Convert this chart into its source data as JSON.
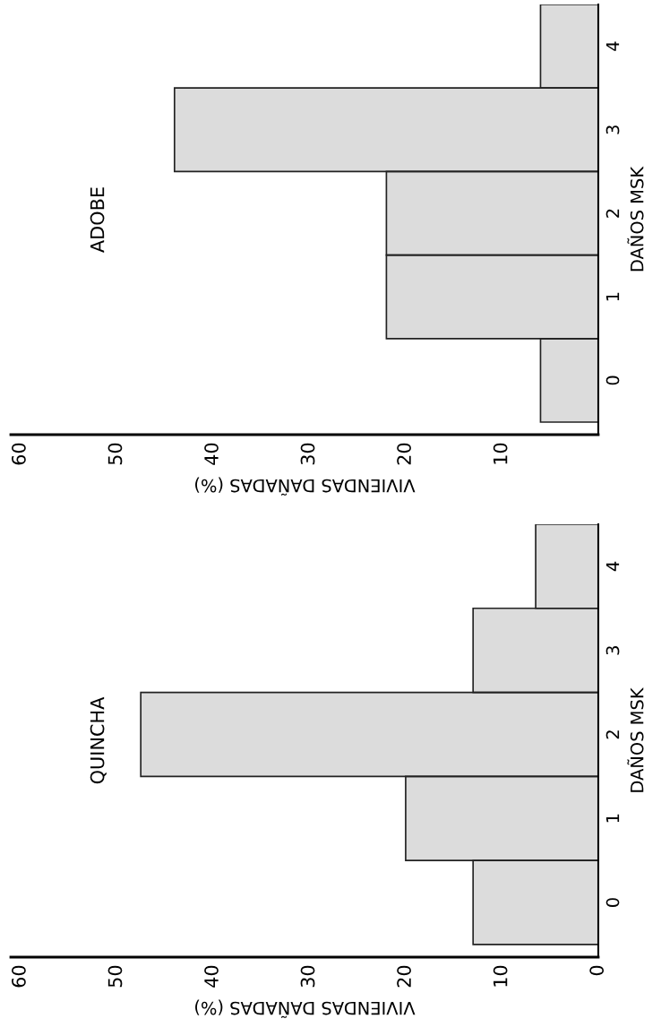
{
  "chart_data": [
    {
      "type": "bar",
      "orientation": "horizontal",
      "title": "QUINCHA",
      "xlabel": "VIVIENDAS DAÑADAS (%)",
      "ylabel": "DAÑOS MSK",
      "categories": [
        "4",
        "3",
        "2",
        "1",
        "0"
      ],
      "values": [
        6.5,
        13,
        47.5,
        20,
        13
      ],
      "color": "#dcdcdc",
      "xlim": [
        61,
        0
      ],
      "xticks": [
        0,
        10,
        20,
        30,
        40,
        50,
        60
      ],
      "grid": false
    },
    {
      "type": "bar",
      "orientation": "horizontal",
      "title": "ADOBE",
      "xlabel": "VIVIENDAS DAÑADAS (%)",
      "ylabel": "DAÑOS MSK",
      "categories": [
        "4",
        "3",
        "2",
        "1",
        "0"
      ],
      "values": [
        6,
        44,
        22,
        22,
        6
      ],
      "color": "#dcdcdc",
      "xlim": [
        61,
        0
      ],
      "xticks": [
        10,
        20,
        30,
        40,
        50,
        60
      ],
      "grid": false
    }
  ]
}
